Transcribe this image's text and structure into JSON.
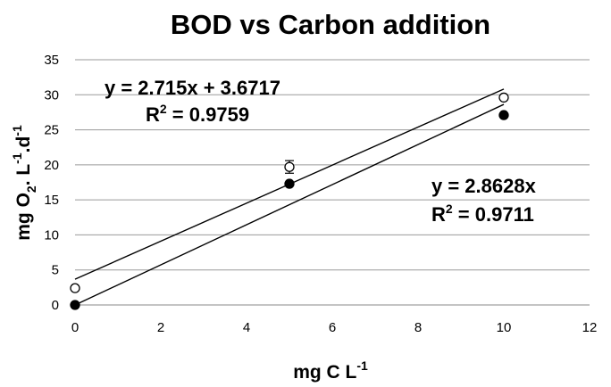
{
  "chart_data": {
    "type": "scatter",
    "title": "BOD vs Carbon addition",
    "xlabel": "mg C L-1",
    "ylabel": "mg O2. L-1.d-1",
    "xlim": [
      0,
      12
    ],
    "ylim": [
      0,
      35
    ],
    "xticks": [
      "0",
      "2",
      "4",
      "6",
      "8",
      "10",
      "12"
    ],
    "yticks": [
      "0",
      "5",
      "10",
      "15",
      "20",
      "25",
      "30",
      "35"
    ],
    "grid": "horizontal",
    "series": [
      {
        "marker": "open-circle",
        "x": [
          0,
          5,
          10
        ],
        "y": [
          2.4,
          19.7,
          29.6
        ],
        "error": [
          0,
          0.9,
          0
        ],
        "trendline": {
          "slope": 2.715,
          "intercept": 3.6717,
          "equation": "y = 2.715x + 3.6717",
          "r2_prefix": "R",
          "r2_value": " = 0.9759"
        }
      },
      {
        "marker": "filled-circle",
        "x": [
          0,
          5,
          10
        ],
        "y": [
          0,
          17.3,
          27.1
        ],
        "error": [
          0,
          0,
          0
        ],
        "trendline": {
          "slope": 2.8628,
          "intercept": 0,
          "equation": "y = 2.8628x",
          "r2_prefix": "R",
          "r2_value": " = 0.9711"
        }
      }
    ]
  }
}
